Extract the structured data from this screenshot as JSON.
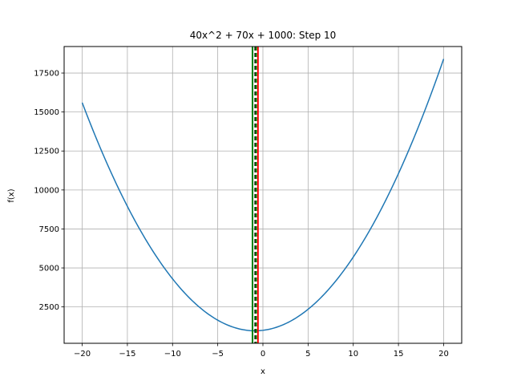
{
  "chart_data": {
    "type": "line",
    "title": "40x^2 + 70x + 1000: Step 10",
    "xlabel": "x",
    "ylabel": "f(x)",
    "xlim": [
      -22,
      22
    ],
    "ylim": [
      167,
      19200
    ],
    "grid": true,
    "function": {
      "a": 40,
      "b": 70,
      "c": 1000,
      "x_range": [
        -20,
        20
      ]
    },
    "series": [
      {
        "color": "#1f77b4",
        "x": [
          -20,
          -18,
          -16,
          -14,
          -12,
          -10,
          -8,
          -6,
          -4,
          -2,
          -0.875,
          0,
          2,
          4,
          6,
          8,
          10,
          12,
          14,
          16,
          18,
          20
        ],
        "y": [
          15600,
          12700,
          10120,
          7860,
          5920,
          4300,
          3000,
          2020,
          1360,
          1020,
          969,
          1000,
          1300,
          1920,
          2860,
          4120,
          5700,
          7600,
          9820,
          12360,
          15220,
          18400
        ]
      }
    ],
    "vertical_lines": [
      {
        "x": -1.15,
        "color": "#008000",
        "style": "solid"
      },
      {
        "x": -0.55,
        "color": "#ff0000",
        "style": "solid"
      },
      {
        "x": -0.85,
        "color": "#000000",
        "style": "dashed"
      },
      {
        "x": -0.75,
        "color": "#008000",
        "style": "dashed"
      }
    ],
    "x_ticks": [
      -20,
      -15,
      -10,
      -5,
      0,
      5,
      10,
      15,
      20
    ],
    "x_tick_labels": [
      "−20",
      "−15",
      "−10",
      "−5",
      "0",
      "5",
      "10",
      "15",
      "20"
    ],
    "y_ticks": [
      2500,
      5000,
      7500,
      10000,
      12500,
      15000,
      17500
    ],
    "y_tick_labels": [
      "2500",
      "5000",
      "7500",
      "10000",
      "12500",
      "15000",
      "17500"
    ]
  }
}
